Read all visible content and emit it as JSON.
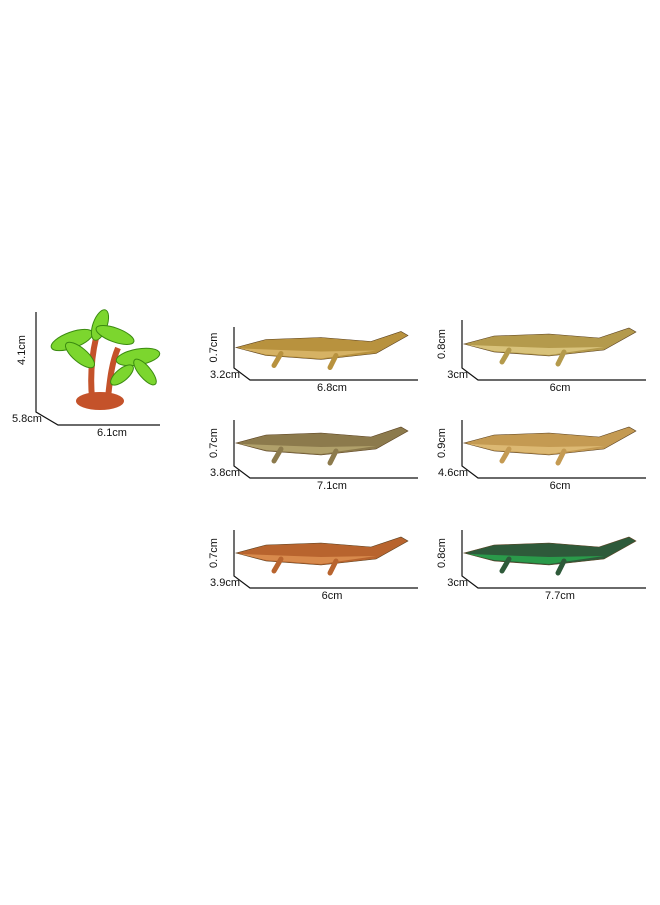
{
  "tree": {
    "height": "4.1cm",
    "depth": "5.8cm",
    "width": "6.1cm"
  },
  "crocodiles": [
    {
      "height": "0.7cm",
      "depth": "3.2cm",
      "length": "6.8cm"
    },
    {
      "height": "0.8cm",
      "depth": "3cm",
      "length": "6cm"
    },
    {
      "height": "0.7cm",
      "depth": "3.8cm",
      "length": "7.1cm"
    },
    {
      "height": "0.9cm",
      "depth": "4.6cm",
      "length": "6cm"
    },
    {
      "height": "0.7cm",
      "depth": "3.9cm",
      "length": "6cm"
    },
    {
      "height": "0.8cm",
      "depth": "3cm",
      "length": "7.7cm"
    }
  ]
}
